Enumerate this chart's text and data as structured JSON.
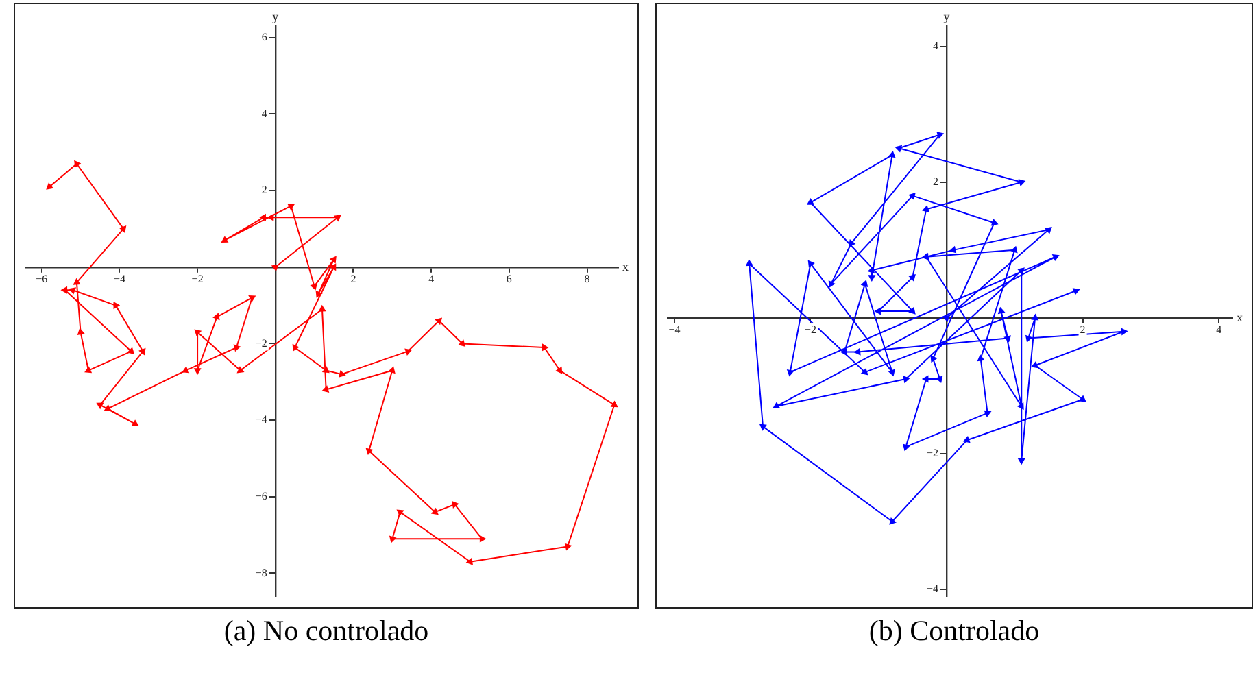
{
  "chart_data": [
    {
      "type": "line",
      "title": "(a) No controlado",
      "xlabel": "x",
      "ylabel": "y",
      "xlim": [
        -6.4,
        8.8
      ],
      "ylim": [
        -8.6,
        6.3
      ],
      "xticks": [
        -6,
        -4,
        -2,
        2,
        4,
        6,
        8
      ],
      "yticks": [
        -8,
        -6,
        -4,
        -2,
        2,
        4,
        6
      ],
      "marker": "triangle",
      "series": [
        {
          "color": "#ff0000",
          "x": [
            0,
            1.6,
            -0.1,
            -0.3,
            -1.3,
            0.4,
            1.0,
            1.5,
            1.1,
            1.5,
            0.5,
            1.3,
            1.7,
            3.4,
            4.2,
            4.8,
            6.9,
            7.3,
            8.7,
            7.5,
            5.0,
            3.2,
            3.0,
            5.3,
            4.6,
            4.1,
            2.4,
            3.0,
            1.3,
            1.2,
            -0.9,
            -2.0,
            -2.0,
            -1.5,
            -0.6,
            -1.0,
            -2.3,
            -4.3,
            -3.6,
            -4.5,
            -3.4,
            -4.1,
            -5.2,
            -5.4,
            -3.7,
            -4.8,
            -5.0,
            -5.1,
            -3.9,
            -5.1,
            -5.8
          ],
          "values": [
            0,
            1.3,
            1.3,
            1.3,
            0.7,
            1.6,
            -0.5,
            0.2,
            -0.7,
            0.0,
            -2.1,
            -2.7,
            -2.8,
            -2.2,
            -1.4,
            -2.0,
            -2.1,
            -2.7,
            -3.6,
            -7.3,
            -7.7,
            -6.4,
            -7.1,
            -7.1,
            -6.2,
            -6.4,
            -4.8,
            -2.7,
            -3.2,
            -1.1,
            -2.7,
            -1.7,
            -2.7,
            -1.3,
            -0.8,
            -2.1,
            -2.7,
            -3.7,
            -4.1,
            -3.6,
            -2.2,
            -1.0,
            -0.6,
            -0.6,
            -2.2,
            -2.7,
            -1.7,
            -0.4,
            1.0,
            2.7,
            2.1
          ]
        }
      ]
    },
    {
      "type": "line",
      "title": "(b) Controlado",
      "xlabel": "x",
      "ylabel": "y",
      "xlim": [
        -4.1,
        4.2
      ],
      "ylim": [
        -4.1,
        4.3
      ],
      "xticks": [
        -4,
        -2,
        2,
        4
      ],
      "yticks": [
        -4,
        -2,
        2,
        4
      ],
      "marker": "triangle",
      "series": [
        {
          "color": "#0000ff",
          "x": [
            0,
            1.5,
            0.1,
            -0.3,
            -1.1,
            -1.1,
            -0.8,
            -2.0,
            -0.5,
            -1.0,
            -0.5,
            -0.3,
            1.1,
            -0.7,
            -0.1,
            -1.4,
            -1.7,
            -0.5,
            0.7,
            -0.2,
            -0.1,
            -0.3,
            -0.6,
            0.6,
            0.5,
            1.0,
            -0.3,
            1.1,
            0.8,
            0.9,
            -1.3,
            -1.5,
            -1.2,
            -0.8,
            -2.0,
            -2.3,
            1.6,
            -2.5,
            -0.6,
            1.1,
            1.1,
            1.3,
            1.2,
            2.6,
            1.3,
            2.0,
            0.3,
            -0.8,
            -2.7,
            -2.9,
            -1.2,
            1.9
          ],
          "values": [
            0,
            1.3,
            1.0,
            0.9,
            0.7,
            0.6,
            2.4,
            1.7,
            0.1,
            0.1,
            0.6,
            1.6,
            2.0,
            2.5,
            2.7,
            1.1,
            0.5,
            1.8,
            1.4,
            -0.6,
            -0.9,
            -0.9,
            -1.9,
            -1.4,
            -0.6,
            1.0,
            0.9,
            -1.3,
            0.1,
            -0.3,
            -0.5,
            -0.5,
            0.5,
            -0.8,
            0.8,
            -0.8,
            0.9,
            -1.3,
            -0.9,
            0.7,
            -2.1,
            0.0,
            -0.3,
            -0.2,
            -0.7,
            -1.2,
            -1.8,
            -3.0,
            -1.6,
            0.8,
            -0.8,
            0.4
          ]
        }
      ]
    }
  ]
}
